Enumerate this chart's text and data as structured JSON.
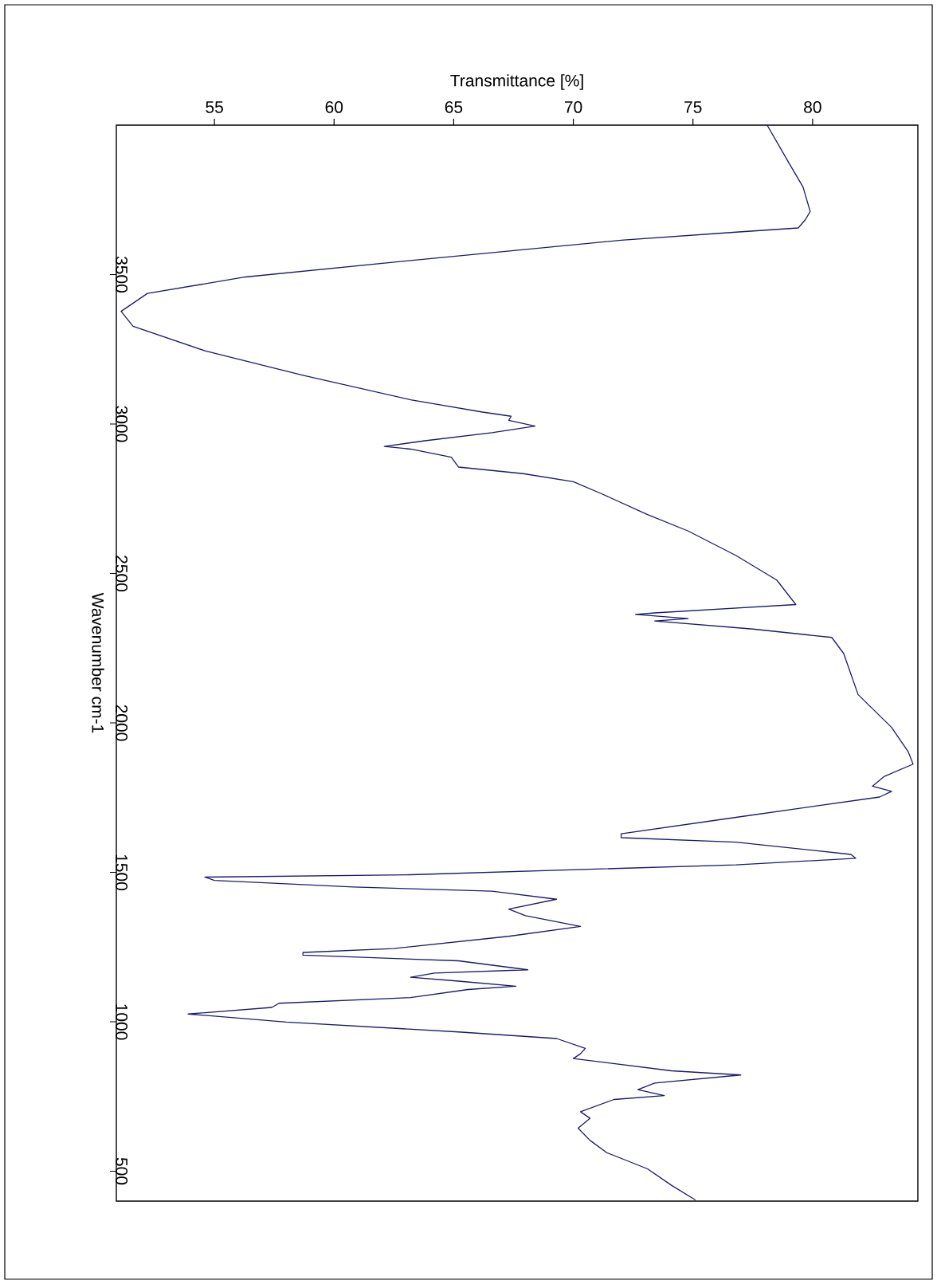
{
  "chart_data": {
    "type": "line",
    "xlabel": "Transmittance [%]",
    "ylabel": "Wavenumber cm-1",
    "xlim": [
      50.9,
      84.4
    ],
    "ylim": [
      400,
      4000
    ],
    "xticks": [
      55,
      60,
      65,
      70,
      75,
      80
    ],
    "yticks": [
      500,
      1000,
      1500,
      2000,
      2500,
      3000,
      3500
    ],
    "series": [
      {
        "color": "#1a1a6e",
        "x": [
          78.1,
          79.0,
          79.6,
          79.9,
          79.7,
          79.4,
          76.8,
          72.0,
          63.2,
          56.3,
          52.2,
          51.1,
          51.6,
          54.6,
          58.7,
          63.2,
          66.2,
          67.4,
          67.3,
          68.4,
          66.6,
          63.8,
          62.1,
          63.2,
          64.9,
          65.2,
          67.9,
          70.0,
          71.2,
          73.1,
          74.8,
          76.8,
          78.5,
          79.3,
          73.4,
          72.6,
          74.8,
          73.4,
          77.5,
          80.8,
          81.3,
          81.9,
          83.3,
          84.0,
          84.2,
          83.0,
          82.5,
          83.3,
          82.8,
          76.8,
          72.0,
          72.0,
          76.8,
          81.6,
          81.8,
          76.8,
          63.2,
          54.6,
          55.0,
          60.8,
          66.6,
          69.3,
          67.3,
          68.0,
          70.3,
          67.3,
          62.5,
          58.7,
          58.7,
          65.2,
          68.1,
          64.2,
          63.2,
          65.2,
          67.6,
          65.6,
          63.2,
          57.7,
          57.4,
          53.9,
          58.0,
          65.2,
          69.3,
          70.5,
          70.3,
          70.0,
          74.1,
          77.0,
          73.4,
          72.7,
          73.8,
          71.7,
          70.3,
          70.7,
          70.2,
          70.7,
          71.4,
          73.1,
          74.1,
          75.1
        ],
        "values": [
          4000,
          3875,
          3793,
          3711,
          3684,
          3656,
          3642,
          3615,
          3547,
          3492,
          3437,
          3377,
          3327,
          3245,
          3163,
          3081,
          3040,
          3026,
          3012,
          2993,
          2971,
          2944,
          2925,
          2916,
          2889,
          2856,
          2834,
          2807,
          2766,
          2697,
          2642,
          2560,
          2478,
          2396,
          2368,
          2363,
          2349,
          2341,
          2314,
          2286,
          2232,
          2095,
          1985,
          1903,
          1862,
          1821,
          1788,
          1771,
          1752,
          1684,
          1629,
          1616,
          1601,
          1560,
          1547,
          1525,
          1492,
          1484,
          1473,
          1451,
          1437,
          1410,
          1377,
          1355,
          1319,
          1286,
          1245,
          1232,
          1223,
          1204,
          1174,
          1163,
          1149,
          1136,
          1119,
          1108,
          1081,
          1062,
          1048,
          1026,
          999,
          966,
          944,
          911,
          893,
          877,
          836,
          822,
          795,
          773,
          753,
          740,
          699,
          677,
          644,
          603,
          562,
          508,
          453,
          404
        ]
      }
    ]
  }
}
